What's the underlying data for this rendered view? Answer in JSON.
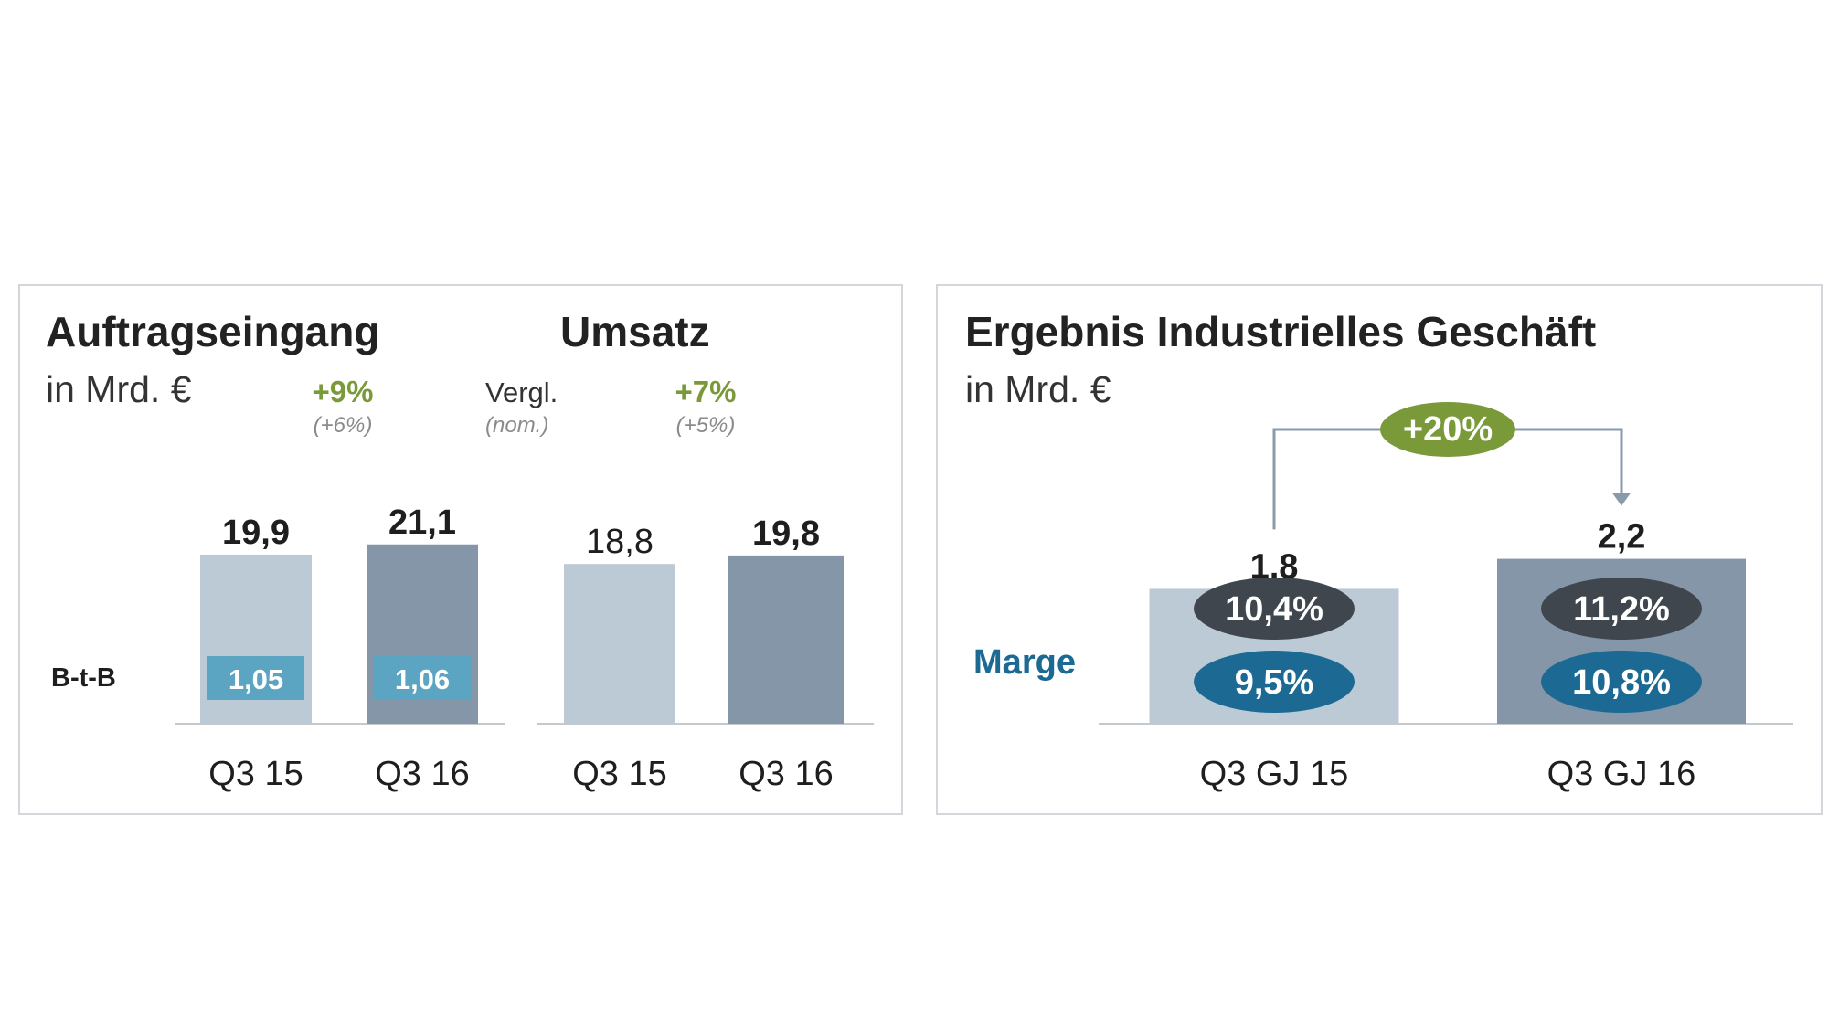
{
  "colors": {
    "bar_light": "#bccad6",
    "bar_dark": "#8496a7",
    "btb_box": "#5ba4c2",
    "growth_green": "#7a9a3a",
    "pill_dark": "#3f464d",
    "pill_blue": "#1c6a93",
    "marge_blue": "#1c6a93",
    "axis": "#c4c9ce",
    "arrow": "#8a9aab"
  },
  "chart_data": [
    {
      "type": "bar",
      "title": "Auftragseingang",
      "subtitle": "in Mrd. €",
      "categories": [
        "Q3 15",
        "Q3 16"
      ],
      "values": [
        19.9,
        21.1
      ],
      "value_labels": [
        "19,9",
        "21,1"
      ],
      "growth": "+9%",
      "growth_sub": "(+6%)",
      "btb_label": "B-t-B",
      "btb_values": [
        1.05,
        1.06
      ],
      "btb_value_labels": [
        "1,05",
        "1,06"
      ]
    },
    {
      "type": "bar",
      "title": "Umsatz",
      "categories": [
        "Q3 15",
        "Q3 16"
      ],
      "values": [
        18.8,
        19.8
      ],
      "value_labels": [
        "18,8",
        "19,8"
      ],
      "vergl_label": "Vergl.",
      "vergl_sub": "(nom.)",
      "growth": "+7%",
      "growth_sub": "(+5%)"
    },
    {
      "type": "bar",
      "title": "Ergebnis Industrielles Geschäft",
      "subtitle": "in Mrd. €",
      "categories": [
        "Q3 GJ 15",
        "Q3 GJ 16"
      ],
      "values": [
        1.8,
        2.2
      ],
      "value_labels": [
        "1,8",
        "2,2"
      ],
      "growth": "+20%",
      "marge_label": "Marge",
      "margin_upper_labels": [
        "10,4%",
        "11,2%"
      ],
      "margin_lower_labels": [
        "9,5%",
        "10,8%"
      ]
    }
  ]
}
